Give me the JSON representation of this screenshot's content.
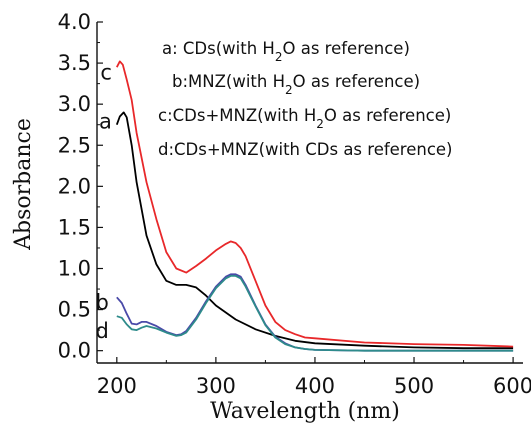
{
  "chart_data": {
    "type": "line",
    "title": "",
    "xlabel": "Wavelength (nm)",
    "ylabel": "Absorbance",
    "xlim": [
      180,
      610
    ],
    "ylim": [
      -0.15,
      4.0
    ],
    "xticks": [
      200,
      300,
      400,
      500,
      600
    ],
    "yticks": [
      0.0,
      0.5,
      1.0,
      1.5,
      2.0,
      2.5,
      3.0,
      3.5,
      4.0
    ],
    "xtick_labels": [
      "200",
      "300",
      "400",
      "500",
      "600"
    ],
    "ytick_labels": [
      "0.0",
      "0.5",
      "1.0",
      "1.5",
      "2.0",
      "2.5",
      "3.0",
      "3.5",
      "4.0"
    ],
    "grid": false,
    "legend_placement": "top-right",
    "legend": [
      {
        "prefix": "a: CDs(with H",
        "sub": "2",
        "suffix": "O as reference)"
      },
      {
        "prefix": "b:MNZ(with H",
        "sub": "2",
        "suffix": "O as reference)"
      },
      {
        "prefix": "c:CDs+MNZ(with H",
        "sub": "2",
        "suffix": "O as reference)"
      },
      {
        "prefix": "d:CDs+MNZ(with CDs as reference)",
        "sub": "",
        "suffix": ""
      }
    ],
    "series": [
      {
        "name": "a",
        "color": "#000000",
        "x": [
          200,
          203,
          207,
          210,
          215,
          220,
          230,
          240,
          250,
          260,
          270,
          280,
          290,
          300,
          320,
          340,
          360,
          380,
          400,
          450,
          500,
          550,
          600
        ],
        "values": [
          2.75,
          2.85,
          2.9,
          2.84,
          2.5,
          2.05,
          1.4,
          1.05,
          0.85,
          0.8,
          0.8,
          0.77,
          0.67,
          0.55,
          0.38,
          0.26,
          0.18,
          0.12,
          0.09,
          0.06,
          0.04,
          0.03,
          0.03
        ]
      },
      {
        "name": "b",
        "color": "#4a4aa8",
        "x": [
          200,
          205,
          210,
          215,
          220,
          225,
          230,
          240,
          250,
          260,
          265,
          270,
          280,
          290,
          300,
          310,
          315,
          320,
          325,
          330,
          340,
          350,
          360,
          370,
          380,
          390,
          400,
          450,
          500,
          550,
          600
        ],
        "values": [
          0.65,
          0.58,
          0.45,
          0.33,
          0.32,
          0.35,
          0.35,
          0.3,
          0.23,
          0.19,
          0.2,
          0.24,
          0.4,
          0.6,
          0.78,
          0.9,
          0.93,
          0.93,
          0.9,
          0.8,
          0.55,
          0.32,
          0.17,
          0.09,
          0.04,
          0.02,
          0.01,
          0.0,
          0.0,
          0.0,
          0.0
        ]
      },
      {
        "name": "c",
        "color": "#e8282a",
        "x": [
          200,
          203,
          206,
          210,
          215,
          220,
          230,
          240,
          250,
          260,
          270,
          280,
          290,
          300,
          310,
          315,
          320,
          325,
          330,
          340,
          350,
          360,
          370,
          380,
          390,
          400,
          450,
          500,
          550,
          600
        ],
        "values": [
          3.45,
          3.52,
          3.48,
          3.3,
          3.05,
          2.65,
          2.05,
          1.6,
          1.2,
          1.0,
          0.95,
          1.03,
          1.12,
          1.22,
          1.3,
          1.33,
          1.31,
          1.25,
          1.15,
          0.85,
          0.55,
          0.35,
          0.25,
          0.2,
          0.16,
          0.15,
          0.1,
          0.08,
          0.07,
          0.05
        ]
      },
      {
        "name": "d",
        "color": "#2e8b8b",
        "x": [
          200,
          205,
          210,
          215,
          220,
          225,
          230,
          240,
          250,
          260,
          265,
          270,
          280,
          290,
          300,
          310,
          315,
          320,
          325,
          330,
          340,
          350,
          360,
          370,
          380,
          390,
          400,
          450,
          500,
          550,
          600
        ],
        "values": [
          0.42,
          0.4,
          0.32,
          0.26,
          0.25,
          0.28,
          0.3,
          0.27,
          0.22,
          0.18,
          0.19,
          0.22,
          0.38,
          0.58,
          0.76,
          0.88,
          0.91,
          0.91,
          0.88,
          0.78,
          0.54,
          0.31,
          0.16,
          0.08,
          0.04,
          0.02,
          0.01,
          0.0,
          0.0,
          0.0,
          0.0
        ]
      }
    ],
    "curve_labels": [
      {
        "text": "c",
        "x": 195,
        "y": 3.4
      },
      {
        "text": "a",
        "x": 195,
        "y": 2.8
      },
      {
        "text": "b",
        "x": 192,
        "y": 0.6
      },
      {
        "text": "d",
        "x": 192,
        "y": 0.25
      }
    ]
  }
}
